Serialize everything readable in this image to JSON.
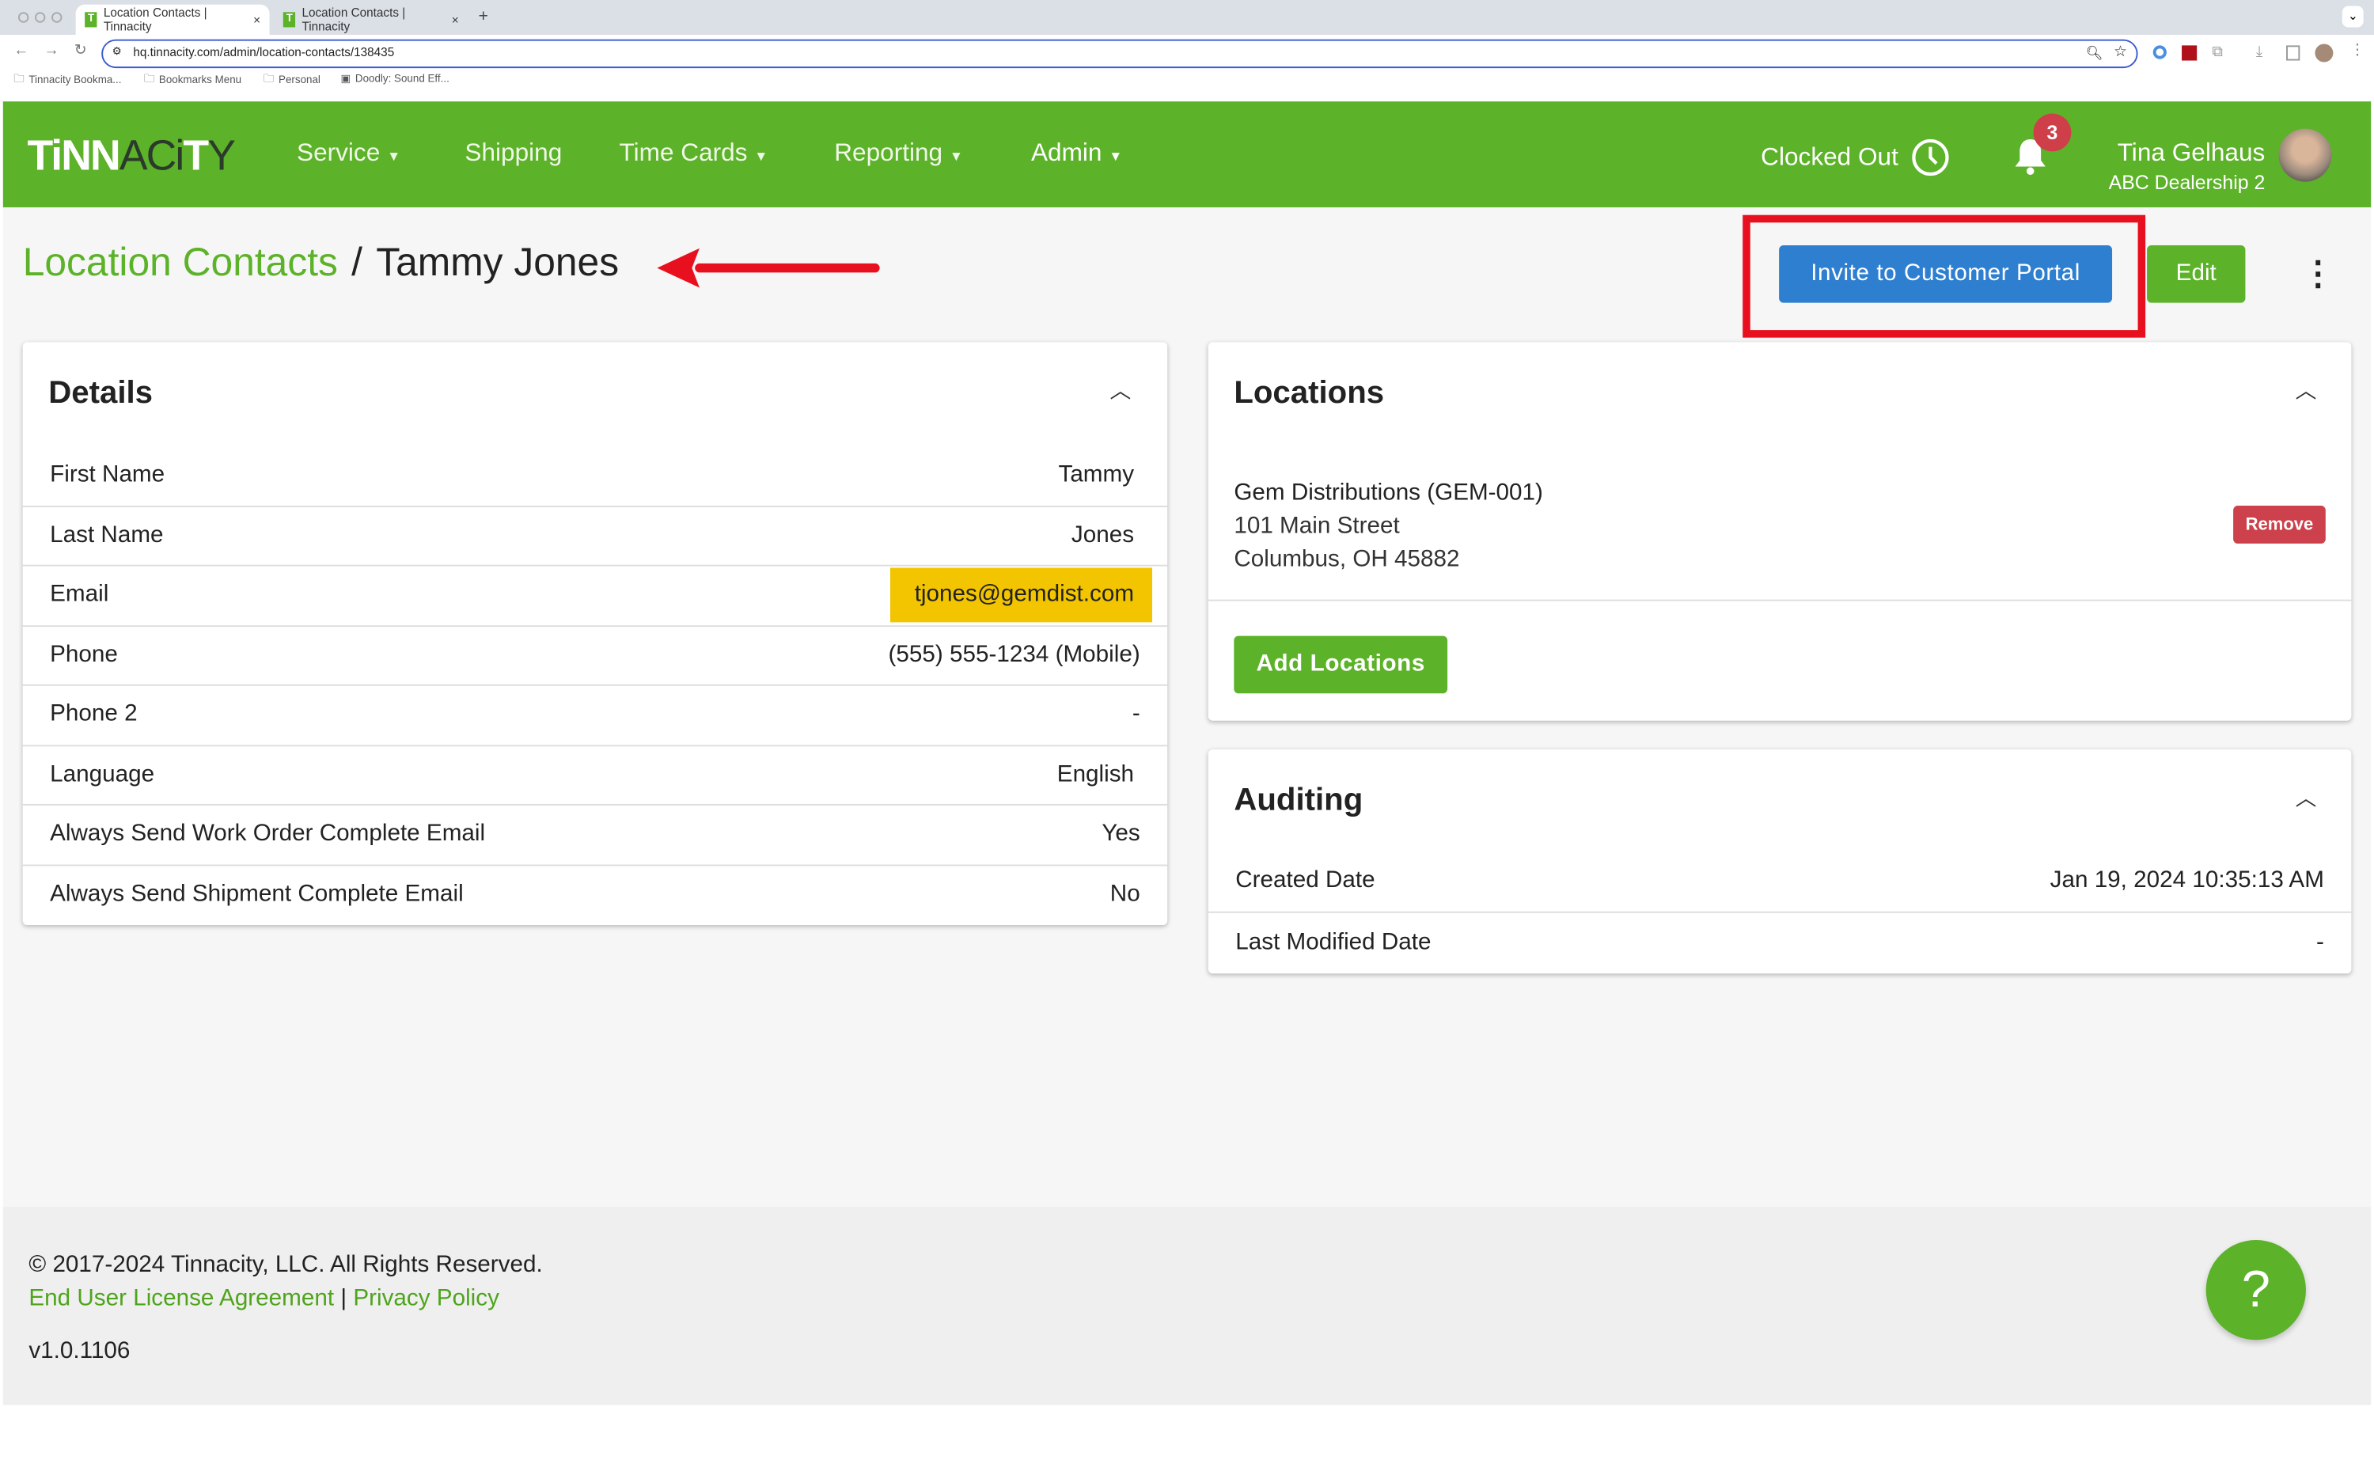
{
  "browser": {
    "tabs": [
      {
        "title": "Location Contacts | Tinnacity",
        "favicon": "T"
      },
      {
        "title": "Location Contacts | Tinnacity",
        "favicon": "T"
      }
    ],
    "new_tab": "+",
    "url": "hq.tinnacity.com/admin/location-contacts/138435",
    "bookmarks": [
      "Tinnacity Bookma...",
      "Bookmarks Menu",
      "Personal",
      "Doodly: Sound Eff..."
    ]
  },
  "nav": {
    "logo": "TINNACITY",
    "items": [
      {
        "label": "Service",
        "dropdown": true
      },
      {
        "label": "Shipping",
        "dropdown": false
      },
      {
        "label": "Time Cards",
        "dropdown": true
      },
      {
        "label": "Reporting",
        "dropdown": true
      },
      {
        "label": "Admin",
        "dropdown": true
      }
    ],
    "clock_status": "Clocked Out",
    "notification_count": "3",
    "user_name": "Tina Gelhaus",
    "user_org": "ABC Dealership 2",
    "brand_color": "#5cb229"
  },
  "page": {
    "breadcrumb_parent": "Location Contacts",
    "breadcrumb_sep": "/",
    "title": "Tammy Jones",
    "invite_button": "Invite to Customer Portal",
    "edit_button": "Edit"
  },
  "details": {
    "title": "Details",
    "rows": [
      {
        "label": "First Name",
        "value": "Tammy"
      },
      {
        "label": "Last Name",
        "value": "Jones"
      },
      {
        "label": "Email",
        "value": "tjones@gemdist.com"
      },
      {
        "label": "Phone",
        "value": "(555) 555-1234 (Mobile)"
      },
      {
        "label": "Phone 2",
        "value": "-"
      },
      {
        "label": "Language",
        "value": "English"
      },
      {
        "label": "Always Send Work Order Complete Email",
        "value": "Yes"
      },
      {
        "label": "Always Send Shipment Complete Email",
        "value": "No"
      }
    ]
  },
  "locations": {
    "title": "Locations",
    "items": [
      {
        "name": "Gem Distributions (GEM-001)",
        "street": "101 Main Street",
        "city": "Columbus, OH 45882",
        "remove_label": "Remove"
      }
    ],
    "add_button": "Add Locations"
  },
  "auditing": {
    "title": "Auditing",
    "rows": [
      {
        "label": "Created Date",
        "value": "Jan 19, 2024 10:35:13 AM"
      },
      {
        "label": "Last Modified Date",
        "value": "-"
      }
    ]
  },
  "footer": {
    "copyright": "© 2017-2024 Tinnacity, LLC. All Rights Reserved.",
    "eula": "End User License Agreement",
    "sep": "|",
    "privacy": "Privacy Policy",
    "version": "v1.0.1106",
    "help": "?"
  }
}
